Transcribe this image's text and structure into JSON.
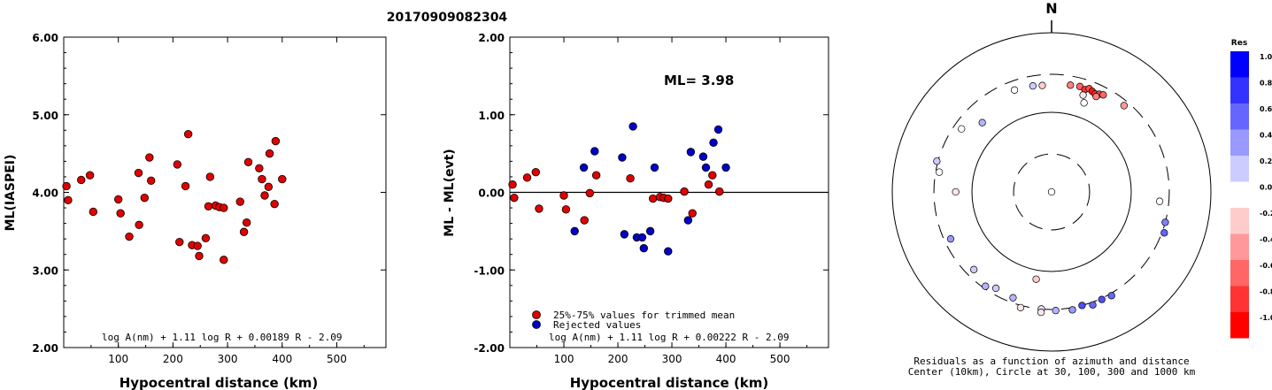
{
  "title": "20170909082304",
  "chart_data": [
    {
      "type": "scatter",
      "xlabel": "Hypocentral distance (km)",
      "ylabel": "ML(IASPEI)",
      "xlim": [
        0,
        590
      ],
      "ylim": [
        2.0,
        6.0
      ],
      "x_ticks": [
        "100",
        "200",
        "300",
        "400",
        "500"
      ],
      "y_ticks": [
        "2.00",
        "3.00",
        "4.00",
        "5.00",
        "6.00"
      ],
      "formula": "log A(nm) + 1.11 log R + 0.00189 R - 2.09",
      "series": [
        {
          "color": "#e00000",
          "points": [
            [
              5,
              4.08
            ],
            [
              8,
              3.9
            ],
            [
              32,
              4.16
            ],
            [
              48,
              4.22
            ],
            [
              54,
              3.75
            ],
            [
              100,
              3.91
            ],
            [
              104,
              3.73
            ],
            [
              120,
              3.43
            ],
            [
              138,
              3.58
            ],
            [
              137,
              4.25
            ],
            [
              148,
              3.93
            ],
            [
              157,
              4.45
            ],
            [
              160,
              4.15
            ],
            [
              208,
              4.36
            ],
            [
              212,
              3.36
            ],
            [
              223,
              4.08
            ],
            [
              228,
              4.75
            ],
            [
              235,
              3.32
            ],
            [
              245,
              3.31
            ],
            [
              248,
              3.18
            ],
            [
              260,
              3.41
            ],
            [
              265,
              3.82
            ],
            [
              268,
              4.2
            ],
            [
              278,
              3.83
            ],
            [
              285,
              3.81
            ],
            [
              293,
              3.13
            ],
            [
              293,
              3.8
            ],
            [
              323,
              3.88
            ],
            [
              330,
              3.49
            ],
            [
              335,
              3.61
            ],
            [
              338,
              4.39
            ],
            [
              358,
              4.31
            ],
            [
              363,
              4.17
            ],
            [
              368,
              3.96
            ],
            [
              375,
              4.07
            ],
            [
              377,
              4.5
            ],
            [
              386,
              3.85
            ],
            [
              388,
              4.66
            ],
            [
              400,
              4.17
            ]
          ]
        }
      ]
    },
    {
      "type": "scatter",
      "xlabel": "Hypocentral distance (km)",
      "ylabel": "ML - ML(evt)",
      "xlim": [
        0,
        590
      ],
      "ylim": [
        -2.0,
        2.0
      ],
      "x_ticks": [
        "100",
        "200",
        "300",
        "400",
        "500"
      ],
      "y_ticks": [
        "-2.00",
        "-1.00",
        "0.00",
        "1.00",
        "2.00"
      ],
      "annotation": "ML= 3.98",
      "formula": "log A(nm) + 1.11 log R + 0.00222 R - 2.09",
      "legend": [
        "25%-75% values for trimmed mean",
        "Rejected values"
      ],
      "series": [
        {
          "name": "25%-75% values for trimmed mean",
          "color": "#e00000",
          "points": [
            [
              5,
              0.1
            ],
            [
              8,
              -0.07
            ],
            [
              32,
              0.19
            ],
            [
              48,
              0.26
            ],
            [
              54,
              -0.21
            ],
            [
              100,
              -0.04
            ],
            [
              104,
              -0.22
            ],
            [
              138,
              -0.36
            ],
            [
              148,
              -0.01
            ],
            [
              160,
              0.22
            ],
            [
              223,
              0.18
            ],
            [
              265,
              -0.08
            ],
            [
              278,
              -0.06
            ],
            [
              285,
              -0.07
            ],
            [
              293,
              -0.08
            ],
            [
              323,
              0.01
            ],
            [
              338,
              -0.27
            ],
            [
              368,
              0.1
            ],
            [
              375,
              0.22
            ],
            [
              388,
              0.01
            ]
          ]
        },
        {
          "name": "Rejected values",
          "color": "#0000c8",
          "points": [
            [
              120,
              -0.5
            ],
            [
              137,
              0.32
            ],
            [
              157,
              0.53
            ],
            [
              208,
              0.45
            ],
            [
              212,
              -0.54
            ],
            [
              228,
              0.85
            ],
            [
              235,
              -0.58
            ],
            [
              245,
              -0.58
            ],
            [
              248,
              -0.72
            ],
            [
              260,
              -0.5
            ],
            [
              268,
              0.32
            ],
            [
              293,
              -0.76
            ],
            [
              330,
              -0.36
            ],
            [
              335,
              0.52
            ],
            [
              358,
              0.46
            ],
            [
              363,
              0.32
            ],
            [
              377,
              0.64
            ],
            [
              386,
              0.81
            ],
            [
              400,
              0.32
            ]
          ]
        }
      ]
    }
  ],
  "polar": {
    "north": "N",
    "caption1": "Residuals as a function of azimuth and distance",
    "caption2": "Center (10km), Circle at 30, 100, 300 and 1000 km",
    "points": [
      [
        340,
        230,
        0.0
      ],
      [
        350,
        225,
        0.2
      ],
      [
        355,
        220,
        -0.2
      ],
      [
        10,
        230,
        -0.5
      ],
      [
        15,
        235,
        -0.6
      ],
      [
        18,
        225,
        -0.8
      ],
      [
        20,
        240,
        -0.7
      ],
      [
        22,
        230,
        -0.9
      ],
      [
        24,
        222,
        -0.8
      ],
      [
        26,
        232,
        -0.7
      ],
      [
        28,
        240,
        -0.6
      ],
      [
        25,
        210,
        -0.5
      ],
      [
        18,
        190,
        -0.1
      ],
      [
        20,
        155,
        0.0
      ],
      [
        40,
        260,
        -0.4
      ],
      [
        95,
        230,
        0.0
      ],
      [
        105,
        300,
        0.5
      ],
      [
        110,
        320,
        0.6
      ],
      [
        150,
        320,
        0.6
      ],
      [
        155,
        310,
        0.7
      ],
      [
        160,
        325,
        0.6
      ],
      [
        165,
        300,
        0.7
      ],
      [
        170,
        320,
        0.4
      ],
      [
        178,
        310,
        0.3
      ],
      [
        185,
        300,
        0.1
      ],
      [
        185,
        330,
        -0.1
      ],
      [
        195,
        320,
        -0.1
      ],
      [
        190,
        130,
        -0.2
      ],
      [
        200,
        260,
        0.3
      ],
      [
        210,
        250,
        0.2
      ],
      [
        225,
        240,
        0.2
      ],
      [
        215,
        280,
        0.3
      ],
      [
        245,
        250,
        0.4
      ],
      [
        270,
        160,
        -0.1
      ],
      [
        280,
        270,
        0.0
      ],
      [
        285,
        310,
        0.2
      ],
      [
        305,
        240,
        0.0
      ],
      [
        0,
        10,
        0.0
      ],
      [
        315,
        170,
        0.3
      ]
    ],
    "colorbar_title": "Res",
    "colorbar_labels": [
      "1.0",
      "0.8",
      "0.6",
      "0.4",
      "0.2",
      "0.0",
      "-0.2",
      "-0.4",
      "-0.6",
      "-0.8",
      "-1.0"
    ]
  }
}
